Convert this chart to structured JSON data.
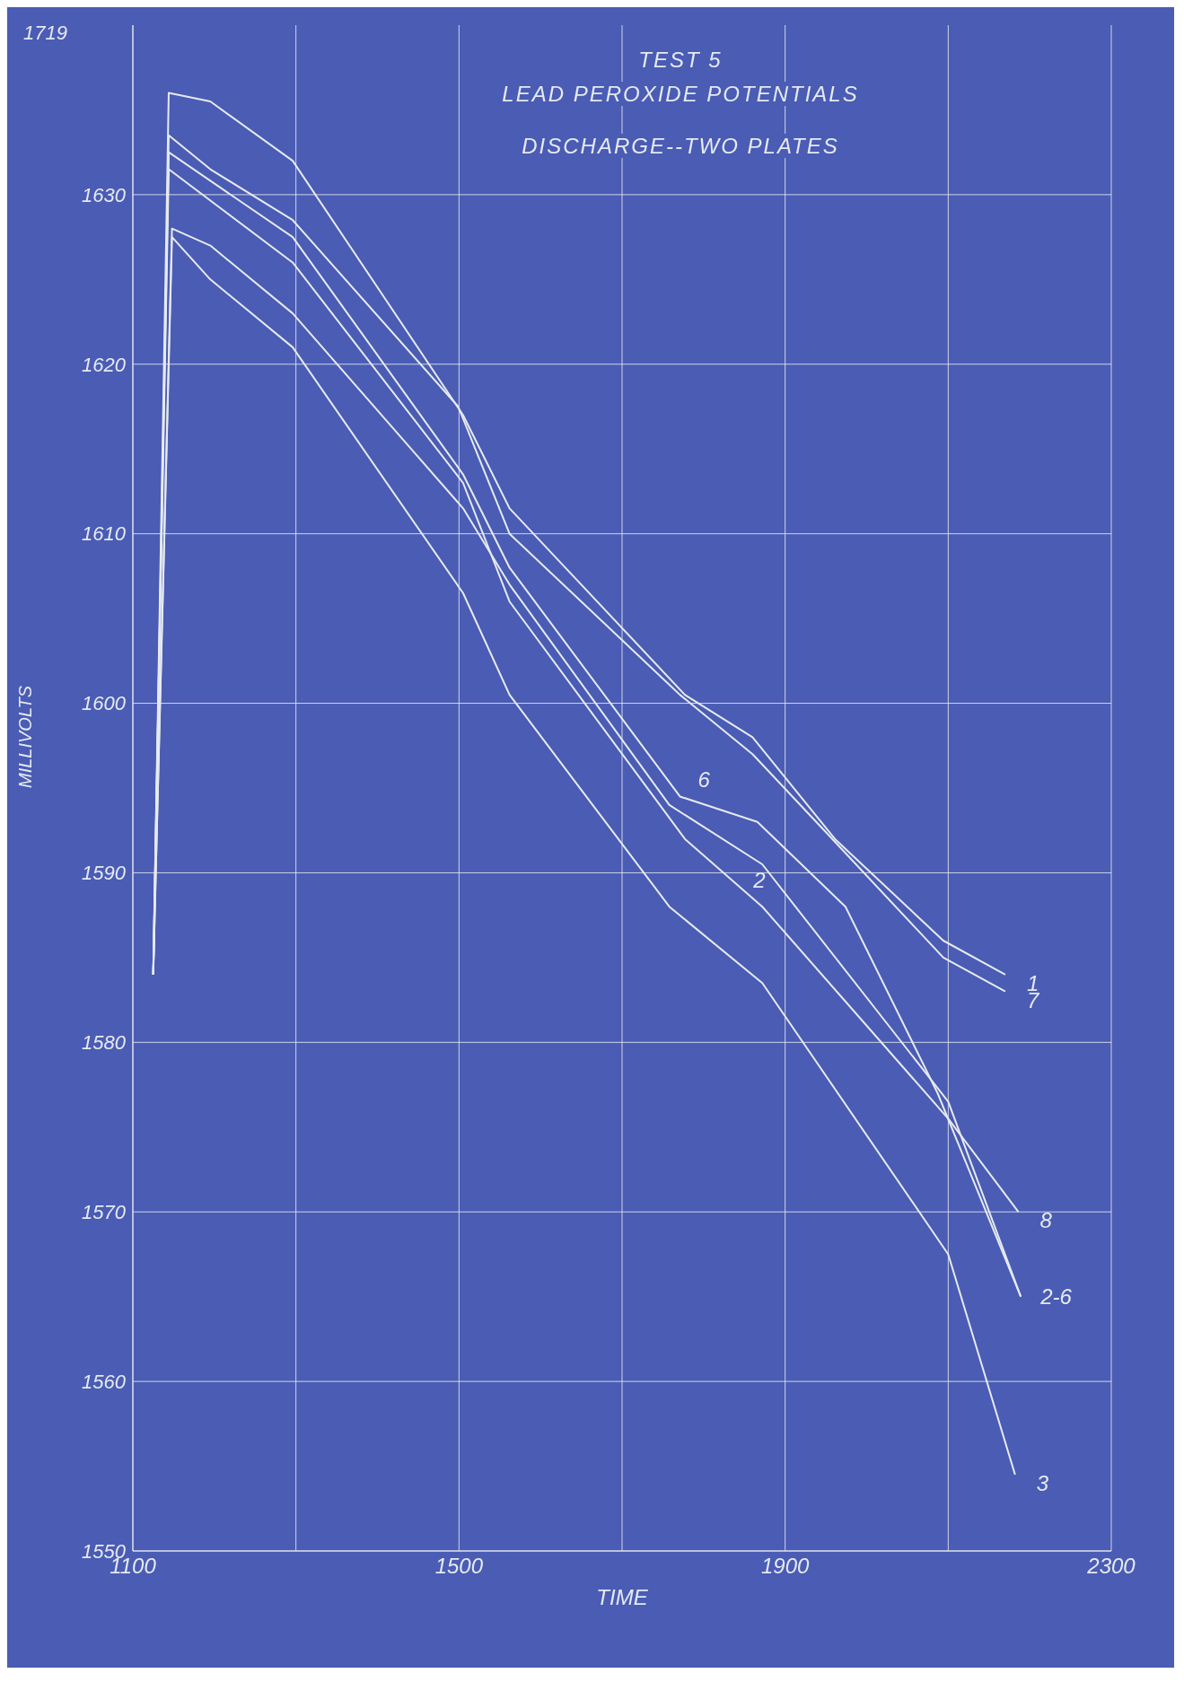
{
  "chart_data": {
    "type": "line",
    "title": "TEST 5",
    "subtitle": "LEAD PEROXIDE POTENTIALS",
    "xlabel": "TIME",
    "ylabel": "MILLIVOLTS",
    "xlim": [
      1100,
      2300
    ],
    "xticks": [
      1100,
      {
        "value": 1300,
        "label": null
      },
      1500,
      {
        "value": 1700,
        "label": null
      },
      1900,
      {
        "value": 2100,
        "label": null
      },
      2300
    ],
    "ylim": [
      1550,
      1640
    ],
    "yticks": [
      1550,
      1560,
      1570,
      1580,
      1590,
      1600,
      1610,
      1620,
      1630
    ],
    "grid": true,
    "line_style": "solid",
    "series": [
      {
        "name": "1",
        "color": "#e6eaf0",
        "x": [
          1125,
          1144,
          1195,
          1296,
          1505,
          1562,
          1777,
          1860,
          1961,
          2094,
          2170
        ],
        "values": [
          1584,
          1636,
          1635.5,
          1632,
          1617,
          1611.5,
          1600.5,
          1598,
          1592,
          1586,
          1584
        ]
      },
      {
        "name": "7",
        "color": "#e6eaf0",
        "x": [
          1125,
          1144,
          1195,
          1296,
          1499,
          1562,
          1771,
          1860,
          1948,
          2094,
          2170
        ],
        "values": [
          1584,
          1633.5,
          1631.5,
          1628.5,
          1617.5,
          1610,
          1600.5,
          1597,
          1592.5,
          1585,
          1583
        ]
      },
      {
        "name": "6",
        "color": "#e6eaf0",
        "x": [
          1125,
          1144,
          1296,
          1505,
          1562,
          1771,
          1866,
          1974,
          2087,
          2189
        ],
        "values": [
          1584,
          1632.5,
          1627.5,
          1613.5,
          1608,
          1594.5,
          1593,
          1588,
          1577,
          1565
        ]
      },
      {
        "name": "8",
        "color": "#e6eaf0",
        "x": [
          1125,
          1144,
          1296,
          1505,
          1562,
          1777,
          1872,
          2100,
          2186
        ],
        "values": [
          1584,
          1631.5,
          1626,
          1613,
          1606,
          1592,
          1588,
          1575.5,
          1570
        ]
      },
      {
        "name": "2",
        "color": "#e6eaf0",
        "x": [
          1125,
          1148,
          1195,
          1296,
          1505,
          1562,
          1758,
          1872,
          2100,
          2189
        ],
        "values": [
          1584,
          1628,
          1627,
          1623,
          1611.5,
          1607,
          1594,
          1590.5,
          1576.5,
          1565
        ]
      },
      {
        "name": "3",
        "color": "#e6eaf0",
        "x": [
          1125,
          1148,
          1195,
          1296,
          1505,
          1562,
          1758,
          1872,
          2100,
          2182
        ],
        "values": [
          1584,
          1627.5,
          1625,
          1621,
          1606.5,
          1600.5,
          1588,
          1583.5,
          1567.5,
          1554.5
        ]
      }
    ],
    "annotations": [
      "DISCHARGE--TWO PLATES",
      "1719",
      "2-6"
    ]
  }
}
